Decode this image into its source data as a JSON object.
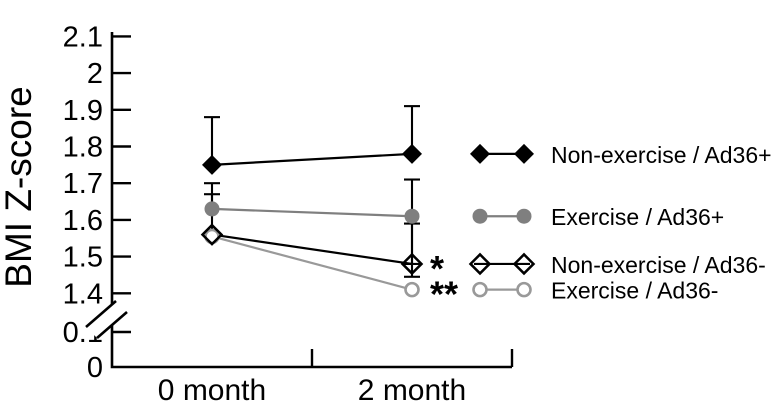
{
  "figure": {
    "background": "#ffffff",
    "colors": {
      "black": "#000000",
      "gray": "#7f7f7f",
      "light_gray": "#999999"
    }
  },
  "chart_data": {
    "type": "line",
    "title": "",
    "xlabel": "",
    "ylabel": "BMI Z-score",
    "categories": [
      "0 month",
      "2 month"
    ],
    "y_axis": {
      "tick_values": [
        0,
        0.1,
        1.4,
        1.5,
        1.6,
        1.7,
        1.8,
        1.9,
        2,
        2.1
      ],
      "tick_labels": [
        "0",
        "0.1",
        "1.4",
        "1.5",
        "1.6",
        "1.7",
        "1.8",
        "1.9",
        "2",
        "2.1"
      ],
      "axis_break_between": [
        0.1,
        1.4
      ],
      "upper_segment_range": [
        1.4,
        2.1
      ],
      "grid": false
    },
    "legend_position": "right",
    "series": [
      {
        "name": "Non-exercise / Ad36+",
        "marker": "diamond-filled",
        "color": "#000000",
        "values": [
          1.75,
          1.78
        ],
        "err_up": [
          0.13,
          0.13
        ],
        "err_down": [
          0,
          0
        ],
        "annotations": [
          "",
          ""
        ]
      },
      {
        "name": "Exercise / Ad36+",
        "marker": "circle-filled",
        "color": "#7f7f7f",
        "values": [
          1.63,
          1.61
        ],
        "err_up": [
          0.07,
          0.1
        ],
        "err_down": [
          0,
          0.13
        ],
        "annotations": [
          "",
          ""
        ]
      },
      {
        "name": "Non-exercise / Ad36-",
        "marker": "diamond-open",
        "color": "#000000",
        "values": [
          1.56,
          1.48
        ],
        "err_up": [
          0.11,
          0.11
        ],
        "err_down": [
          0,
          0.035
        ],
        "annotations": [
          "",
          "*"
        ]
      },
      {
        "name": "Exercise / Ad36-",
        "marker": "circle-open",
        "color": "#999999",
        "values": [
          1.555,
          1.41
        ],
        "err_up": [
          0,
          0
        ],
        "err_down": [
          0,
          0
        ],
        "annotations": [
          "",
          "**"
        ]
      }
    ]
  }
}
